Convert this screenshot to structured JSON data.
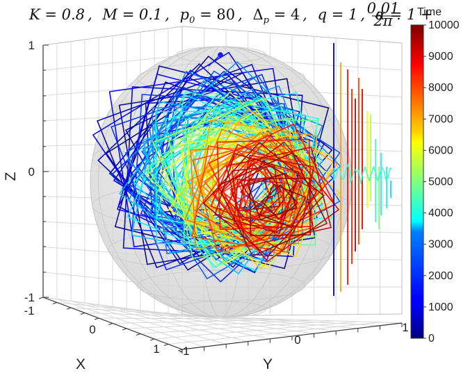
{
  "chart_data": {
    "type": "line",
    "title_parts": {
      "K": "K = 0.8",
      "M": "M = 0.1",
      "p0": "p",
      "p0_sub": "0",
      "p0_val": " = 80",
      "dp": "Δ",
      "dp_sub": "p",
      "dp_val": " = 4",
      "q": "q = 1",
      "alpha": "α = 1 + ",
      "frac_num": "0.01",
      "frac_den": "2π",
      "end": "."
    },
    "xlabel": "X",
    "ylabel": "Y",
    "zlabel": "Z",
    "x_ticks": [
      "-1",
      "0",
      "1"
    ],
    "y_ticks": [
      "-1",
      "0",
      "1"
    ],
    "z_ticks": [
      "-1",
      "0",
      "1"
    ],
    "xlim": [
      -1,
      1
    ],
    "ylim": [
      -1,
      1
    ],
    "zlim": [
      -1,
      1
    ],
    "grid": true,
    "sphere": {
      "radius": 1,
      "color": "#dcdcdc",
      "transparent": true
    },
    "start_point": {
      "x": 0,
      "y": 0,
      "z": 1,
      "color": "#1010ff"
    },
    "colorbar": {
      "title": "Time",
      "colormap": "jet",
      "min": 0,
      "max": 10000,
      "ticks": [
        "0",
        "1000",
        "2000",
        "3000",
        "4000",
        "5000",
        "6000",
        "7000",
        "8000",
        "9000",
        "10000"
      ]
    },
    "trajectory": {
      "t_start": 0,
      "t_end": 10000,
      "description_from_image": "square-like orbits rotating on the sphere, color by time"
    }
  }
}
